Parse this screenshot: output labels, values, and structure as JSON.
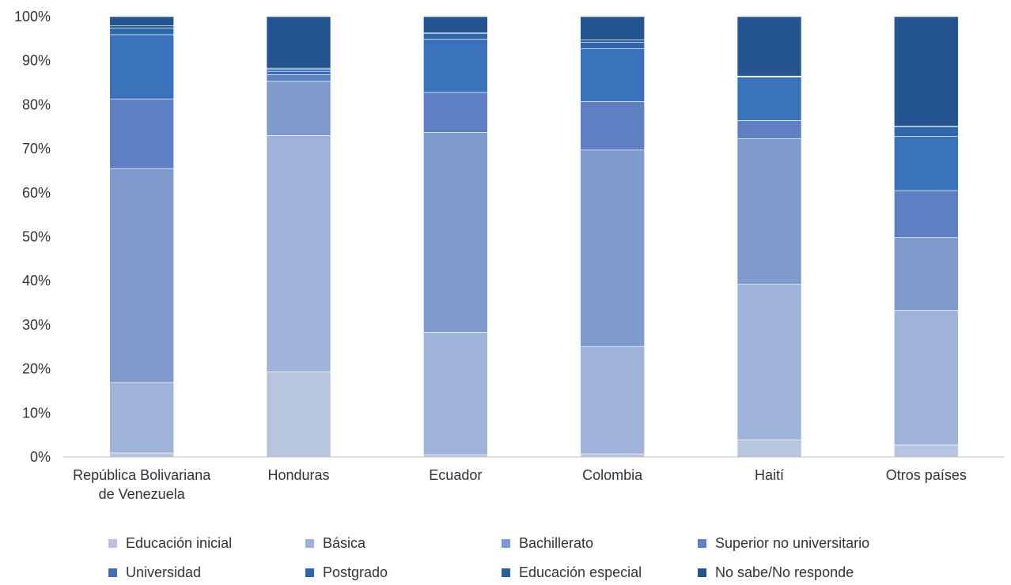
{
  "chart_data": {
    "type": "bar",
    "stacked": true,
    "percent": true,
    "categories": [
      [
        "República Bolivariana",
        "de Venezuela"
      ],
      [
        "Honduras"
      ],
      [
        "Ecuador"
      ],
      [
        "Colombia"
      ],
      [
        "Haití"
      ],
      [
        "Otros países"
      ]
    ],
    "ylim": [
      0,
      100
    ],
    "yticks": [
      "0%",
      "10%",
      "20%",
      "30%",
      "40%",
      "50%",
      "60%",
      "70%",
      "80%",
      "90%",
      "100%"
    ],
    "grid": false,
    "legend_position": "bottom",
    "series": [
      {
        "name": "Educación inicial",
        "color": "#b7c4df",
        "values": [
          0.9,
          19.3,
          0.5,
          0.7,
          3.9,
          2.7
        ]
      },
      {
        "name": "Básica",
        "color": "#9fb2da",
        "values": [
          16.0,
          53.7,
          27.8,
          24.4,
          35.3,
          30.6
        ]
      },
      {
        "name": "Bachillerato",
        "color": "#7f9bcd",
        "values": [
          48.6,
          12.3,
          45.4,
          44.6,
          33.1,
          16.5
        ]
      },
      {
        "name": "Superior no universitario",
        "color": "#5e80c2",
        "values": [
          15.8,
          1.5,
          9.1,
          11.0,
          4.1,
          10.7
        ]
      },
      {
        "name": "Universidad",
        "color": "#3a71bb",
        "values": [
          14.6,
          0.8,
          12.1,
          12.0,
          9.9,
          12.3
        ]
      },
      {
        "name": "Postgrado",
        "color": "#2f66ab",
        "values": [
          1.5,
          0.5,
          1.2,
          1.5,
          0.1,
          2.2
        ]
      },
      {
        "name": "Educación especial",
        "color": "#2b5c9c",
        "values": [
          0.5,
          0.2,
          0.2,
          0.5,
          0.1,
          0.1
        ]
      },
      {
        "name": "No sabe/No responde",
        "color": "#255590",
        "values": [
          2.1,
          11.7,
          3.7,
          5.3,
          13.5,
          24.9
        ]
      }
    ]
  }
}
